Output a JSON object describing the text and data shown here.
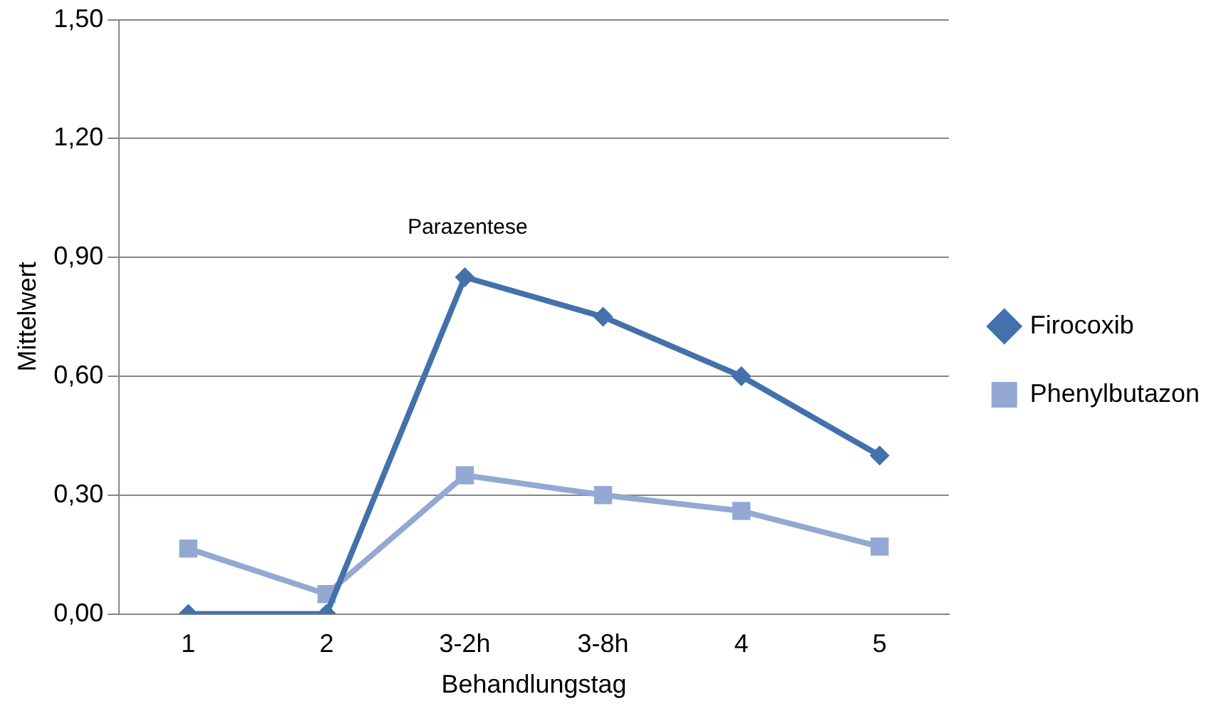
{
  "chart_data": {
    "type": "line",
    "xlabel": "Behandlungstag",
    "ylabel": "Mittelwert",
    "categories": [
      "1",
      "2",
      "3-2h",
      "3-8h",
      "4",
      "5"
    ],
    "series": [
      {
        "name": "Firocoxib",
        "color": "#4271ab",
        "values": [
          0,
          0,
          0.85,
          0.75,
          0.6,
          0.4
        ],
        "marker": "diamond"
      },
      {
        "name": "Phenylbutazon",
        "color": "#93a9d3",
        "values": [
          0.165,
          0.05,
          0.35,
          0.3,
          0.26,
          0.17
        ],
        "marker": "square"
      }
    ],
    "ylim": [
      0,
      1.5
    ],
    "yticks": [
      {
        "value": 0,
        "label": "0,00"
      },
      {
        "value": 0.3,
        "label": "0,30"
      },
      {
        "value": 0.6,
        "label": "0,60"
      },
      {
        "value": 0.9,
        "label": "0,90"
      },
      {
        "value": 1.2,
        "label": "1,20"
      },
      {
        "value": 1.5,
        "label": "1,50"
      }
    ],
    "grid": "y",
    "legend": "right",
    "line_style": "solid",
    "annotations": [
      "Parazentese"
    ]
  }
}
